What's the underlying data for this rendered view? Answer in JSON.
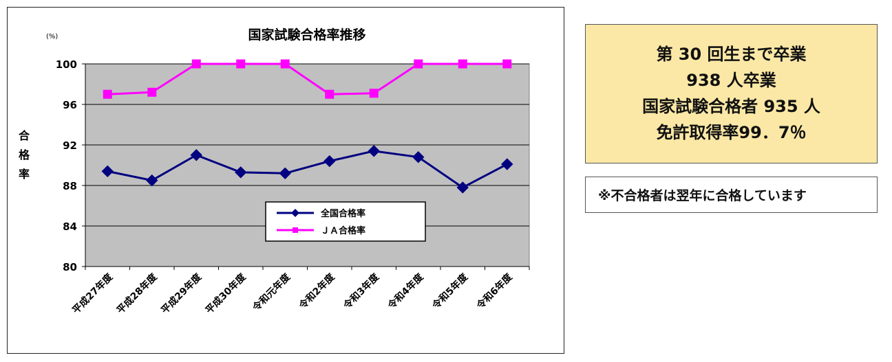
{
  "chart_data": {
    "type": "line",
    "title": "国家試験合格率推移",
    "unit_label": "(%)",
    "ylabel": "合格率",
    "xlabel": "",
    "ylim": [
      80,
      100
    ],
    "yticks": [
      80,
      84,
      88,
      92,
      96,
      100
    ],
    "grid": true,
    "legend_position": "lower-center",
    "categories": [
      "平成27年度",
      "平成28年度",
      "平成29年度",
      "平成30年度",
      "令和元年度",
      "令和2年度",
      "令和3年度",
      "令和4年度",
      "令和5年度",
      "令和6年度"
    ],
    "series": [
      {
        "name": "全国合格率",
        "color": "#000080",
        "marker": "diamond",
        "values": [
          89.4,
          88.5,
          91.0,
          89.3,
          89.2,
          90.4,
          91.4,
          90.8,
          87.8,
          90.1
        ]
      },
      {
        "name": "ＪＡ合格率",
        "color": "#ff00ff",
        "marker": "square",
        "values": [
          97.0,
          97.2,
          100,
          100,
          100,
          97.0,
          97.1,
          100,
          100,
          100
        ]
      }
    ]
  },
  "stats": {
    "lines": [
      "第 30 回生まで卒業",
      "938 人卒業",
      "国家試験合格者 935 人",
      "免許取得率99．7％"
    ],
    "background": "#fbe8a6"
  },
  "note": {
    "text": "※不合格者は翌年に合格しています"
  }
}
